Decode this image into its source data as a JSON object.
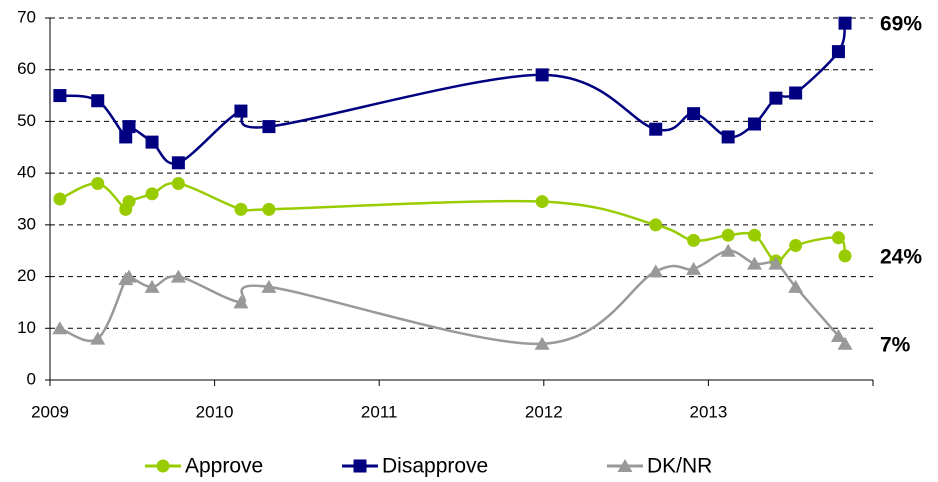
{
  "chart_data": {
    "type": "line",
    "x": [
      2009.06,
      2009.29,
      2009.46,
      2009.48,
      2009.62,
      2009.78,
      2010.16,
      2010.33,
      2011.99,
      2012.68,
      2012.91,
      2013.12,
      2013.28,
      2013.41,
      2013.53,
      2013.79,
      2013.83
    ],
    "series": [
      {
        "name": "Approve",
        "color": "#99cc00",
        "marker": "circle",
        "values": [
          35,
          38,
          33,
          34.5,
          36,
          38,
          33,
          33,
          34.5,
          30,
          27,
          28,
          28,
          23,
          26,
          27.5,
          24
        ],
        "value_labels": [
          null,
          null,
          null,
          null,
          null,
          null,
          null,
          null,
          null,
          null,
          null,
          null,
          null,
          null,
          null,
          null,
          "24%"
        ]
      },
      {
        "name": "Disapprove",
        "color": "#000080",
        "marker": "square",
        "values": [
          55,
          54,
          47,
          49,
          46,
          42,
          52,
          49,
          59,
          48.5,
          51.5,
          47,
          49.5,
          54.5,
          55.5,
          63.5,
          69
        ],
        "value_labels": [
          null,
          null,
          null,
          null,
          null,
          null,
          null,
          null,
          null,
          null,
          null,
          null,
          null,
          null,
          null,
          null,
          "69%"
        ]
      },
      {
        "name": "DK/NR",
        "color": "#999999",
        "marker": "triangle",
        "values": [
          10,
          8,
          19.5,
          20,
          18,
          20,
          15,
          18,
          7,
          21,
          21.5,
          25,
          22.5,
          22.5,
          18,
          8.5,
          7
        ],
        "value_labels": [
          null,
          null,
          null,
          null,
          null,
          null,
          null,
          null,
          null,
          null,
          null,
          null,
          null,
          null,
          null,
          null,
          "7%"
        ]
      }
    ],
    "xlim": [
      2009,
      2014
    ],
    "xticks": [
      2009,
      2010,
      2011,
      2012,
      2013
    ],
    "ylim": [
      0,
      70
    ],
    "yticks": [
      0,
      10,
      20,
      30,
      40,
      50,
      60,
      70
    ],
    "grid": true,
    "legend": "bottom"
  }
}
